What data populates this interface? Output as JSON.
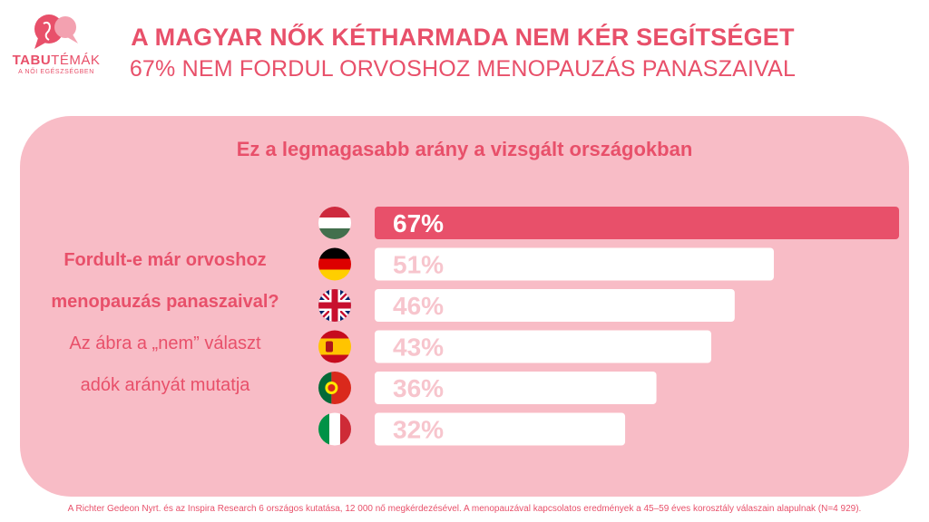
{
  "logo": {
    "brand_bold": "TABU",
    "brand_rest": "TÉMÁK",
    "tagline": "A NŐI EGÉSZSÉGBEN"
  },
  "header": {
    "title": "A MAGYAR NŐK KÉTHARMADA NEM KÉR SEGÍTSÉGET",
    "subtitle": "67% NEM FORDUL ORVOSHOZ MENOPAUZÁS PANASZAIVAL"
  },
  "panel": {
    "title": "Ez a legmagasabb arány a vizsgált országokban",
    "question_line1": "Fordult-e már orvoshoz",
    "question_line2": "menopauzás panaszaival?",
    "note_line1": "Az ábra a „nem” választ",
    "note_line2": "adók arányát mutatja"
  },
  "footnote": "A Richter Gedeon Nyrt. és az Inspira Research 6 országos kutatása, 12 000 nő megkérdezésével. A menopauzával kapcsolatos eredmények a 45–59 éves korosztály válaszain alapulnak (N=4 929).",
  "colors": {
    "accent": "#e8506a",
    "panel": "#f8bcc6",
    "bar_default": "#ffffff",
    "label_muted": "#f7c5cd"
  },
  "chart_data": {
    "type": "bar",
    "orientation": "horizontal",
    "categories": [
      "hungary-flag-icon",
      "germany-flag-icon",
      "uk-flag-icon",
      "spain-flag-icon",
      "portugal-flag-icon",
      "italy-flag-icon"
    ],
    "values": [
      67,
      51,
      46,
      43,
      36,
      32
    ],
    "value_labels": [
      "67%",
      "51%",
      "46%",
      "43%",
      "36%",
      "32%"
    ],
    "highlight_index": 0,
    "xlim": [
      0,
      67
    ],
    "grid": false
  }
}
